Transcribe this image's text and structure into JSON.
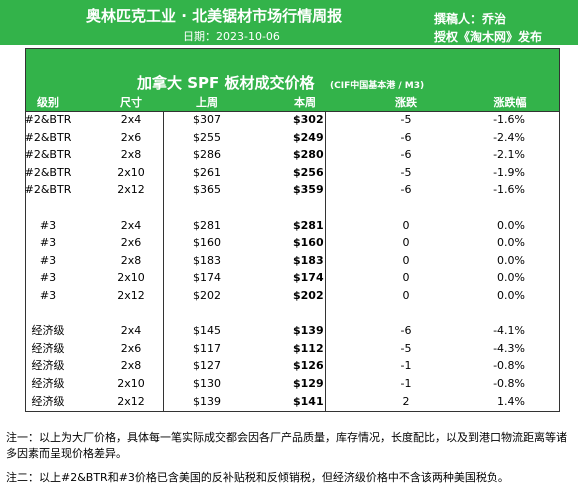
{
  "header": {
    "title": "奥林匹克工业 · 北美锯材市场行情周报",
    "date": "日期：2023-10-06",
    "author": "撰稿人：乔治",
    "license": "授权《淘木网》发布"
  },
  "table": {
    "title": "加拿大 SPF 板材成交价格",
    "unit": "(CIF中国基本港 / M3)",
    "columns": [
      "级别",
      "尺寸",
      "上周",
      "本周",
      "涨跌",
      "涨跌幅"
    ],
    "groups": [
      [
        [
          "#2&BTR",
          "2x4",
          "$307",
          "$302",
          "-5",
          "-1.6%"
        ],
        [
          "#2&BTR",
          "2x6",
          "$255",
          "$249",
          "-6",
          "-2.4%"
        ],
        [
          "#2&BTR",
          "2x8",
          "$286",
          "$280",
          "-6",
          "-2.1%"
        ],
        [
          "#2&BTR",
          "2x10",
          "$261",
          "$256",
          "-5",
          "-1.9%"
        ],
        [
          "#2&BTR",
          "2x12",
          "$365",
          "$359",
          "-6",
          "-1.6%"
        ]
      ],
      [
        [
          "#3",
          "2x4",
          "$281",
          "$281",
          "0",
          "0.0%"
        ],
        [
          "#3",
          "2x6",
          "$160",
          "$160",
          "0",
          "0.0%"
        ],
        [
          "#3",
          "2x8",
          "$183",
          "$183",
          "0",
          "0.0%"
        ],
        [
          "#3",
          "2x10",
          "$174",
          "$174",
          "0",
          "0.0%"
        ],
        [
          "#3",
          "2x12",
          "$202",
          "$202",
          "0",
          "0.0%"
        ]
      ],
      [
        [
          "经济级",
          "2x4",
          "$145",
          "$139",
          "-6",
          "-4.1%"
        ],
        [
          "经济级",
          "2x6",
          "$117",
          "$112",
          "-5",
          "-4.3%"
        ],
        [
          "经济级",
          "2x8",
          "$127",
          "$126",
          "-1",
          "-0.8%"
        ],
        [
          "经济级",
          "2x10",
          "$130",
          "$129",
          "-1",
          "-0.8%"
        ],
        [
          "经济级",
          "2x12",
          "$139",
          "$141",
          "2",
          "1.4%"
        ]
      ]
    ]
  },
  "notes": [
    "注一：以上为大厂价格，具体每一笔实际成交都会因各厂产品质量，库存情况，长度配比，以及到港口物流距离等诸多因素而呈现价格差异。",
    "注二：以上#2&BTR和#3价格已含美国的反补贴税和反倾销税，但经济级价格中不含该两种美国税负。"
  ]
}
